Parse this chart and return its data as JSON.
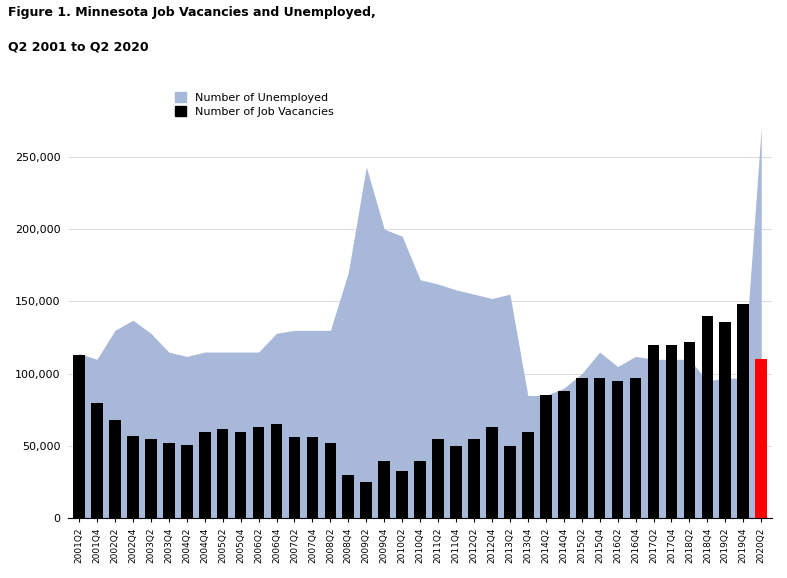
{
  "labels": [
    "2001Q2",
    "2001Q4",
    "2002Q2",
    "2002Q4",
    "2003Q2",
    "2003Q4",
    "2004Q2",
    "2004Q4",
    "2005Q2",
    "2005Q4",
    "2006Q2",
    "2006Q4",
    "2007Q2",
    "2007Q4",
    "2008Q2",
    "2008Q4",
    "2009Q2",
    "2009Q4",
    "2010Q2",
    "2010Q4",
    "2011Q2",
    "2011Q4",
    "2012Q2",
    "2012Q4",
    "2013Q2",
    "2013Q4",
    "2014Q2",
    "2014Q4",
    "2015Q2",
    "2015Q4",
    "2016Q2",
    "2016Q4",
    "2017Q2",
    "2017Q4",
    "2018Q2",
    "2018Q4",
    "2019Q2",
    "2019Q4",
    "2020Q2"
  ],
  "unemployed": [
    114000,
    110000,
    130000,
    137000,
    128000,
    115000,
    112000,
    115000,
    115000,
    115000,
    115000,
    128000,
    130000,
    130000,
    130000,
    170000,
    243000,
    200000,
    195000,
    165000,
    162000,
    158000,
    155000,
    152000,
    155000,
    85000,
    85000,
    90000,
    100000,
    115000,
    105000,
    112000,
    110000,
    110000,
    110000,
    95000,
    97000,
    97000,
    270000
  ],
  "vacancies": [
    113000,
    80000,
    68000,
    57000,
    55000,
    52000,
    51000,
    60000,
    62000,
    60000,
    63000,
    65000,
    56000,
    56000,
    52000,
    30000,
    25000,
    40000,
    33000,
    40000,
    55000,
    50000,
    55000,
    63000,
    50000,
    60000,
    85000,
    88000,
    97000,
    97000,
    95000,
    97000,
    120000,
    120000,
    122000,
    140000,
    136000,
    148000,
    110000
  ],
  "vacancy_colors": [
    "black",
    "black",
    "black",
    "black",
    "black",
    "black",
    "black",
    "black",
    "black",
    "black",
    "black",
    "black",
    "black",
    "black",
    "black",
    "black",
    "black",
    "black",
    "black",
    "black",
    "black",
    "black",
    "black",
    "black",
    "black",
    "black",
    "black",
    "black",
    "black",
    "black",
    "black",
    "black",
    "black",
    "black",
    "black",
    "black",
    "black",
    "black",
    "red"
  ],
  "area_color": "#a8b8d8",
  "title_line1": "Figure 1. Minnesota Job Vacancies and Unemployed,",
  "title_line2": "Q2 2001 to Q2 2020",
  "legend_unemployed": "Number of Unemployed",
  "legend_vacancies": "Number of Job Vacancies",
  "ylim": [
    0,
    300000
  ],
  "yticks": [
    0,
    50000,
    100000,
    150000,
    200000,
    250000
  ]
}
